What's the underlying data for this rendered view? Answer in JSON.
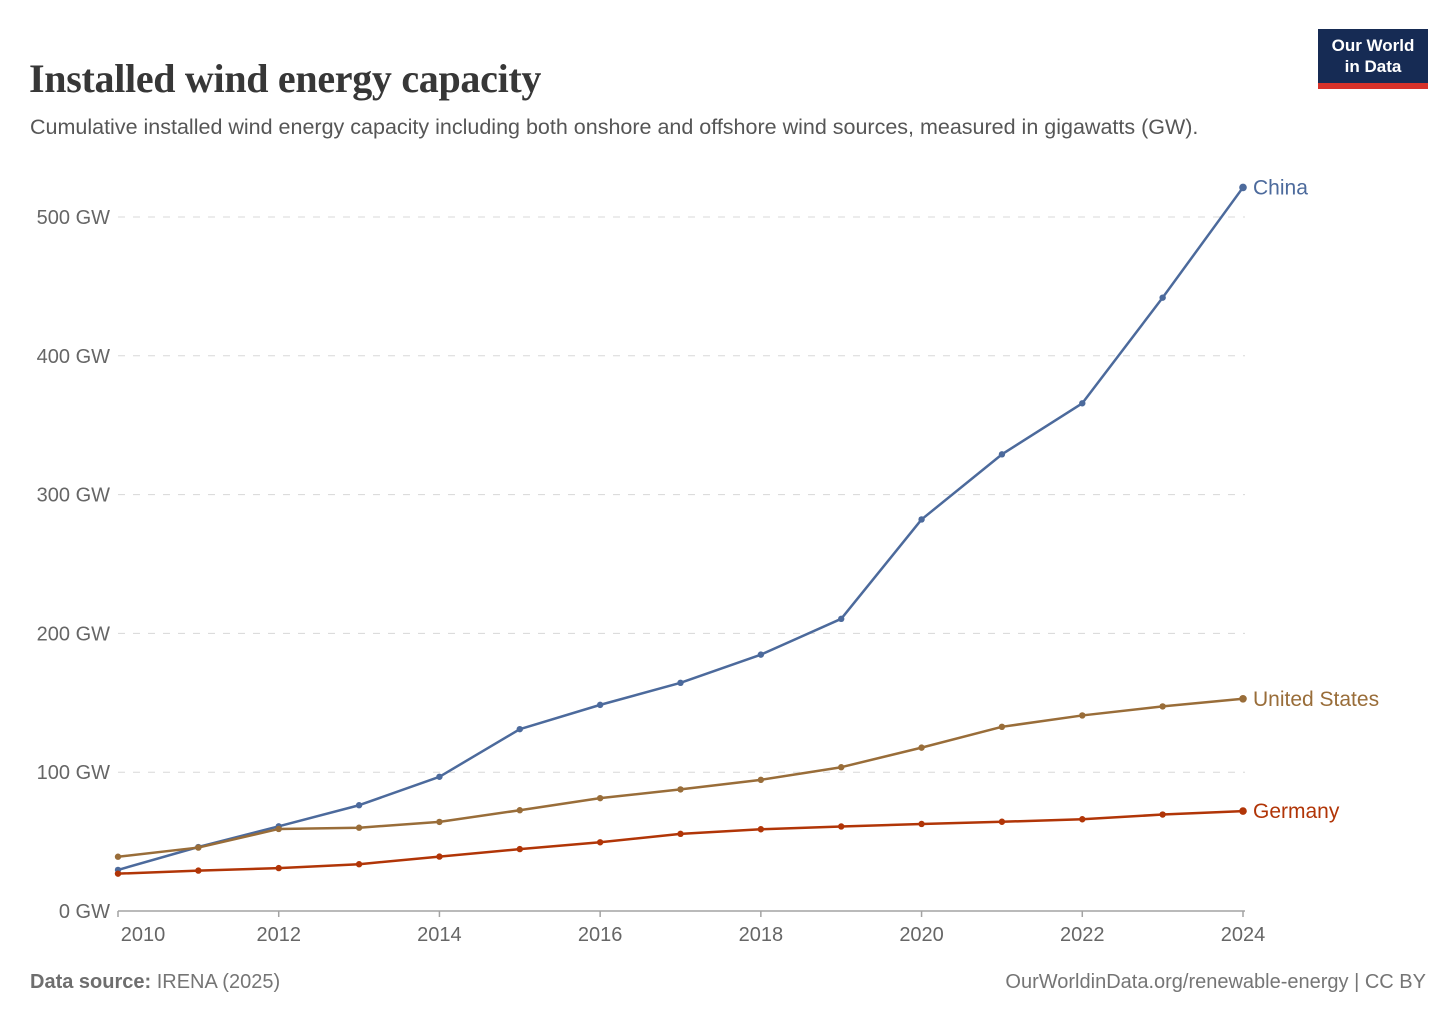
{
  "header": {
    "title": "Installed wind energy capacity",
    "subtitle": "Cumulative installed wind energy capacity including both onshore and offshore wind sources, measured in gigawatts (GW).",
    "logo": {
      "line1": "Our World",
      "line2": "in Data",
      "bg_color": "#162B54",
      "bar_color": "#D7322A"
    }
  },
  "chart_data": {
    "type": "line",
    "title": "Installed wind energy capacity",
    "xlabel": "",
    "ylabel": "GW",
    "x": [
      2010,
      2011,
      2012,
      2013,
      2014,
      2015,
      2016,
      2017,
      2018,
      2019,
      2020,
      2021,
      2022,
      2023,
      2024
    ],
    "series": [
      {
        "name": "China",
        "color": "#4C6A9C",
        "values": [
          29.6,
          46.1,
          61.0,
          76.2,
          96.7,
          131.0,
          148.5,
          164.4,
          184.7,
          210.5,
          282.1,
          329.0,
          365.8,
          441.9,
          521.3
        ]
      },
      {
        "name": "United States",
        "color": "#996D39",
        "values": [
          39.1,
          45.7,
          59.1,
          60.0,
          64.2,
          72.6,
          81.3,
          87.6,
          94.5,
          103.6,
          117.7,
          132.7,
          140.9,
          147.4,
          152.9
        ]
      },
      {
        "name": "Germany",
        "color": "#B13507",
        "values": [
          26.9,
          29.1,
          30.9,
          33.7,
          39.2,
          44.6,
          49.5,
          55.6,
          58.9,
          60.9,
          62.7,
          64.3,
          66.1,
          69.5,
          72.0
        ]
      }
    ],
    "yticks": [
      0,
      100,
      200,
      300,
      400,
      500
    ],
    "ytick_labels": [
      "0 GW",
      "100 GW",
      "200 GW",
      "300 GW",
      "400 GW",
      "500 GW"
    ],
    "xticks": [
      2010,
      2012,
      2014,
      2016,
      2018,
      2020,
      2022,
      2024
    ],
    "xlim": [
      2010,
      2024
    ],
    "ylim": [
      0,
      500
    ],
    "grid": "horizontal-dashed",
    "legend_position": "end-of-line-labels",
    "grid_color": "#d8d8d8",
    "axis_color": "#a3a3a3"
  },
  "footer": {
    "source_label": "Data source:",
    "source_value": "IRENA (2025)",
    "credit": "OurWorldinData.org/renewable-energy | CC BY"
  }
}
